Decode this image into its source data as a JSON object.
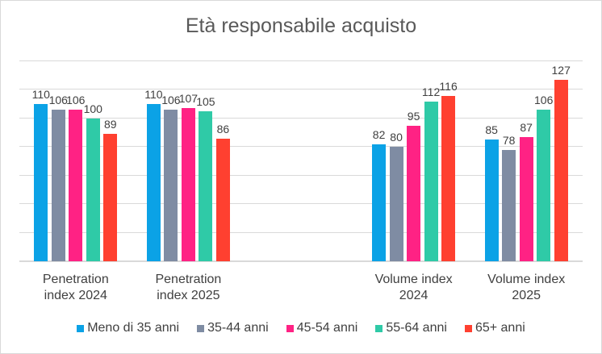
{
  "chart_data": {
    "type": "bar",
    "title": "Età responsabile acquisto",
    "categories": [
      "Penetration index 2024",
      "Penetration index 2025",
      "",
      "Volume index 2024",
      "Volume index 2025"
    ],
    "category_lines": [
      [
        "Penetration",
        "index 2024"
      ],
      [
        "Penetration",
        "index 2025"
      ],
      [
        "",
        ""
      ],
      [
        "Volume index",
        "2024"
      ],
      [
        "Volume index",
        "2025"
      ]
    ],
    "series": [
      {
        "name": "Meno di 35 anni",
        "color": "#0ba2e6",
        "values": [
          110,
          110,
          null,
          82,
          85
        ]
      },
      {
        "name": "35-44 anni",
        "color": "#7f8ca3",
        "values": [
          106,
          106,
          null,
          80,
          78
        ]
      },
      {
        "name": "45-54 anni",
        "color": "#ff2284",
        "values": [
          106,
          107,
          null,
          95,
          87
        ]
      },
      {
        "name": "55-64 anni",
        "color": "#2fcaa7",
        "values": [
          100,
          105,
          null,
          112,
          106
        ]
      },
      {
        "name": "65+ anni",
        "color": "#ff4030",
        "values": [
          89,
          86,
          null,
          116,
          127
        ]
      }
    ],
    "xlabel": "",
    "ylabel": "",
    "ylim": [
      0,
      140
    ],
    "grid": true,
    "y_axis_labels_shown": false,
    "legend_position": "bottom"
  }
}
